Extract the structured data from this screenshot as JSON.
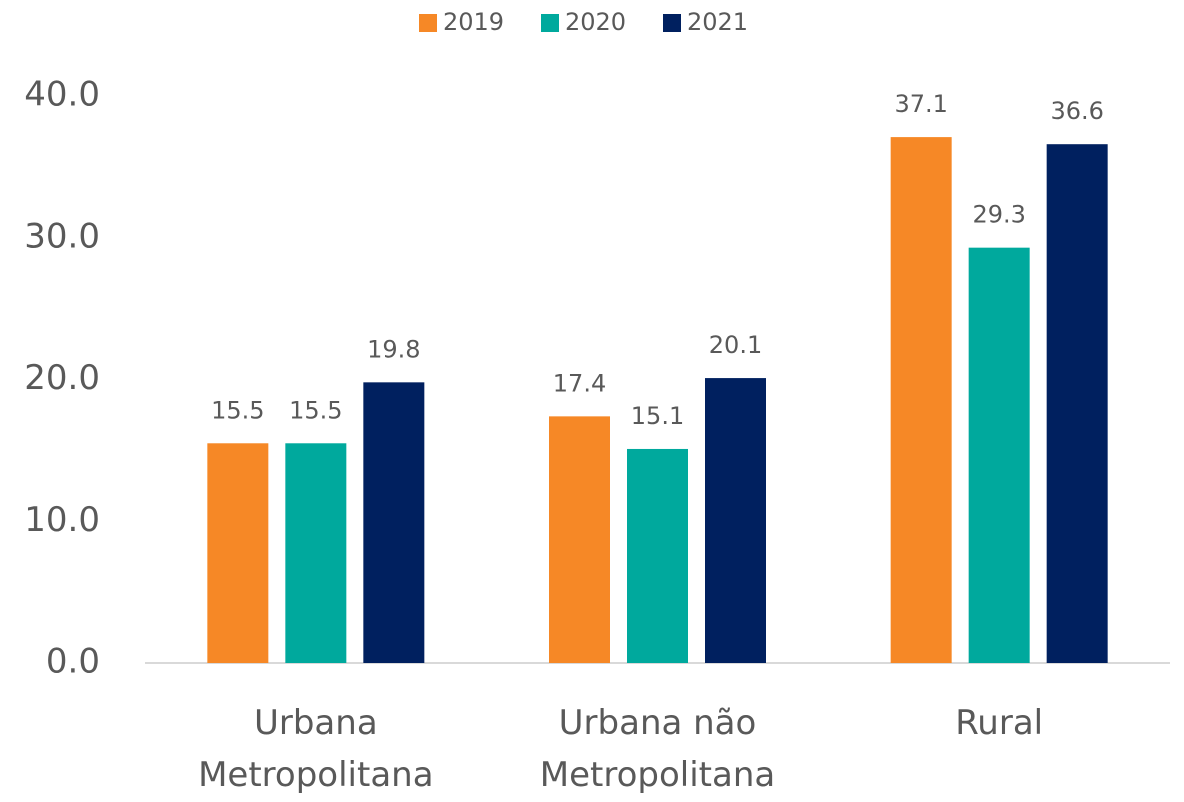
{
  "chart_data": {
    "type": "bar",
    "categories": [
      "Urbana Metropolitana",
      "Urbana não Metropolitana",
      "Rural"
    ],
    "series": [
      {
        "name": "2019",
        "color": "#F68826",
        "values": [
          15.5,
          17.4,
          37.1
        ]
      },
      {
        "name": "2020",
        "color": "#00A99D",
        "values": [
          15.5,
          15.1,
          29.3
        ]
      },
      {
        "name": "2021",
        "color": "#00205F",
        "values": [
          19.8,
          20.1,
          36.6
        ]
      }
    ],
    "ylim": [
      0,
      40
    ],
    "yticks": [
      {
        "value": 0,
        "label": "0.0"
      },
      {
        "value": 10,
        "label": "10.0"
      },
      {
        "value": 20,
        "label": "20.0"
      },
      {
        "value": 30,
        "label": "30.0"
      },
      {
        "value": 40,
        "label": "40.0"
      }
    ],
    "legend": "top"
  }
}
